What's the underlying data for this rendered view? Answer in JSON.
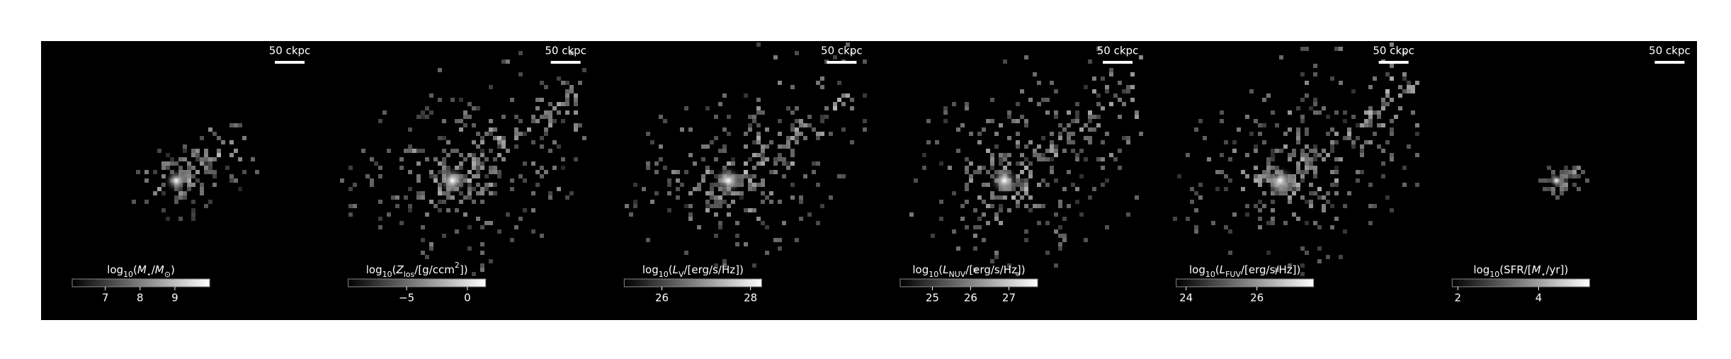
{
  "panels": [
    {
      "scale_bar": "50 ckpc",
      "colorbar": {
        "label": [
          {
            "text": "log"
          },
          {
            "text": "10",
            "sub": true
          },
          {
            "text": "("
          },
          {
            "text": "M",
            "italic": true
          },
          {
            "text": "⋆",
            "sub": true
          },
          {
            "text": "/"
          },
          {
            "text": "M",
            "italic": true
          },
          {
            "text": "⊙",
            "sub": true
          },
          {
            "text": ")"
          }
        ],
        "clim": [
          6.05,
          10.0
        ],
        "ticks": [
          7,
          8,
          9
        ]
      }
    },
    {
      "scale_bar": "50 ckpc",
      "colorbar": {
        "label": [
          {
            "text": "log"
          },
          {
            "text": "10",
            "sub": true
          },
          {
            "text": "("
          },
          {
            "text": "Z",
            "italic": true
          },
          {
            "text": "los",
            "sub": true
          },
          {
            "text": "/[g/ccm"
          },
          {
            "text": "2",
            "sup": true
          },
          {
            "text": "])"
          }
        ],
        "clim": [
          -9.8,
          1.5
        ],
        "ticks": [
          {
            "value": -5,
            "label": "−5"
          },
          0
        ]
      }
    },
    {
      "scale_bar": "50 ckpc",
      "colorbar": {
        "label": [
          {
            "text": "log"
          },
          {
            "text": "10",
            "sub": true
          },
          {
            "text": "("
          },
          {
            "text": "L",
            "italic": true
          },
          {
            "text": "V",
            "sub": true
          },
          {
            "text": "/[erg/s/Hz])"
          }
        ],
        "clim": [
          25.15,
          28.25
        ],
        "ticks": [
          26,
          28
        ]
      }
    },
    {
      "scale_bar": "50 ckpc",
      "colorbar": {
        "label": [
          {
            "text": "log"
          },
          {
            "text": "10",
            "sub": true
          },
          {
            "text": "("
          },
          {
            "text": "L",
            "italic": true
          },
          {
            "text": "NUV",
            "sub": true
          },
          {
            "text": "/[erg/s/Hz])"
          }
        ],
        "clim": [
          24.16,
          27.75
        ],
        "ticks": [
          25,
          26,
          27
        ]
      }
    },
    {
      "scale_bar": "50 ckpc",
      "colorbar": {
        "label": [
          {
            "text": "log"
          },
          {
            "text": "10",
            "sub": true
          },
          {
            "text": "("
          },
          {
            "text": "L",
            "italic": true
          },
          {
            "text": "FUV",
            "sub": true
          },
          {
            "text": "/[erg/s/Hz])"
          }
        ],
        "clim": [
          23.72,
          27.6
        ],
        "ticks": [
          24,
          26
        ]
      }
    },
    {
      "scale_bar": "50 ckpc",
      "colorbar": {
        "label": [
          {
            "text": "log"
          },
          {
            "text": "10",
            "sub": true
          },
          {
            "text": "(SFR/["
          },
          {
            "text": "M",
            "italic": true
          },
          {
            "text": "⋆",
            "sub": true
          },
          {
            "text": "/yr])"
          }
        ],
        "clim": [
          1.86,
          5.26
        ],
        "ticks": [
          2,
          4
        ]
      }
    }
  ]
}
